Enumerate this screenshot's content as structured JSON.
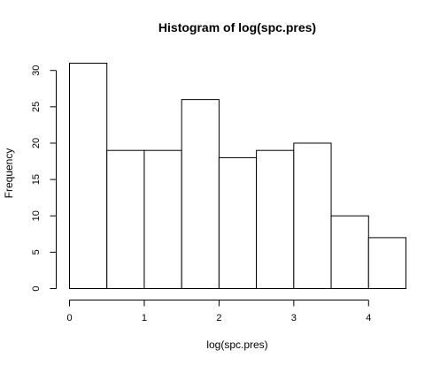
{
  "chart_data": {
    "type": "bar",
    "title": "Histogram of log(spc.pres)",
    "xlabel": "log(spc.pres)",
    "ylabel": "Frequency",
    "bin_edges": [
      0,
      0.5,
      1,
      1.5,
      2,
      2.5,
      3,
      3.5,
      4,
      4.5
    ],
    "values": [
      31,
      19,
      19,
      26,
      18,
      19,
      20,
      10,
      7
    ],
    "xlim": [
      0,
      4.5
    ],
    "ylim": [
      0,
      31
    ],
    "x_ticks": [
      0,
      1,
      2,
      3,
      4
    ],
    "y_ticks": [
      0,
      5,
      10,
      15,
      20,
      25,
      30
    ],
    "grid": false,
    "bar_fill": "#ffffff",
    "bar_stroke": "#000000"
  }
}
